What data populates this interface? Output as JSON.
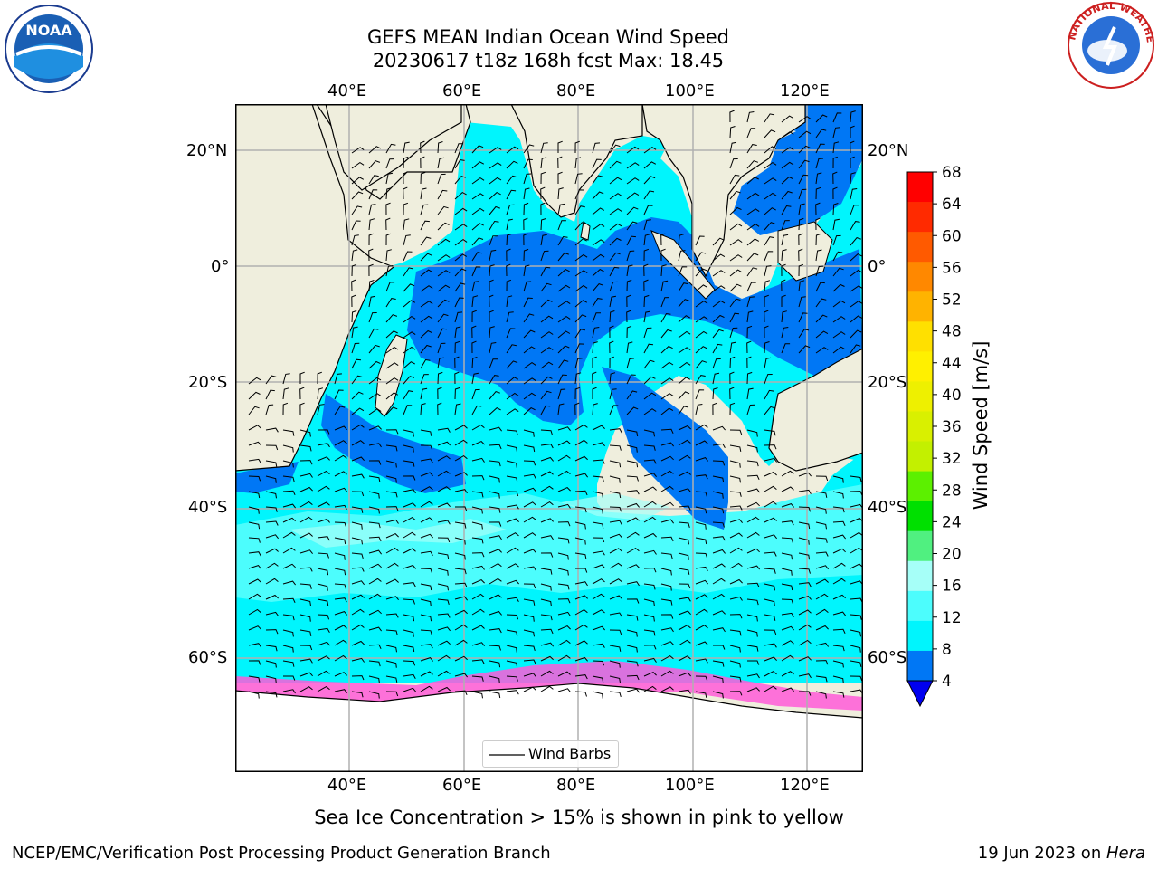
{
  "title": {
    "line1": "GEFS MEAN Indian Ocean Wind Speed",
    "line2": "20230617 t18z 168h fcst   Max: 18.45"
  },
  "map": {
    "lon_ticks": [
      "40°E",
      "60°E",
      "80°E",
      "100°E",
      "120°E"
    ],
    "lat_ticks": [
      "20°N",
      "0°",
      "20°S",
      "40°S",
      "60°S"
    ],
    "land_color": "#efeedd",
    "ice_color": "#ffffff",
    "grid_color": "#b0b0b0"
  },
  "legend": {
    "label": "Wind Barbs"
  },
  "colorbar": {
    "label": "Wind Speed [m/s]",
    "ticks": [
      "68",
      "64",
      "60",
      "56",
      "52",
      "48",
      "44",
      "40",
      "36",
      "32",
      "28",
      "24",
      "20",
      "16",
      "12",
      "8",
      "4"
    ],
    "colors": [
      "#ff0000",
      "#ff2a00",
      "#ff5a00",
      "#ff8800",
      "#ffb300",
      "#ffe000",
      "#fff000",
      "#eef000",
      "#d9f000",
      "#c3f000",
      "#5cf000",
      "#00e000",
      "#50f080",
      "#a6fff8",
      "#4cfdfd",
      "#00f5fd",
      "#0077f5"
    ],
    "extend_color": "#0000f0"
  },
  "caption": "Sea Ice Concentration > 15% is shown in pink to yellow",
  "footer": {
    "left": "NCEP/EMC/Verification Post Processing Product Generation Branch",
    "date": "19 Jun 2023 on ",
    "machine": "Hera"
  },
  "logos": {
    "left_icon": "noaa-logo",
    "left_text": "NOAA",
    "right_icon": "nws-logo",
    "right_text": "NATIONAL WEATHER SERVICE"
  }
}
